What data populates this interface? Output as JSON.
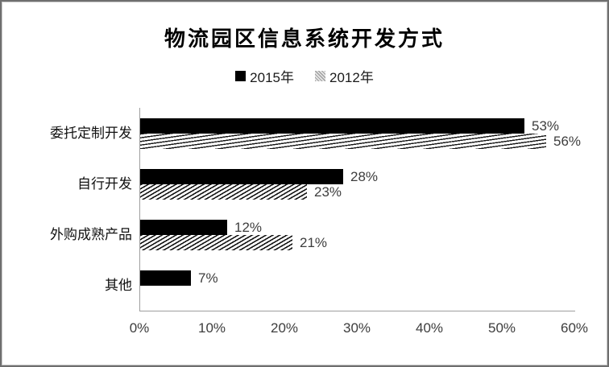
{
  "frame": {
    "background": "#ffffff",
    "border_color": "#6f6f6f"
  },
  "chart_data": {
    "type": "bar",
    "orientation": "horizontal",
    "title": "物流园区信息系统开发方式",
    "categories": [
      "委托定制开发",
      "自行开发",
      "外购成熟产品",
      "其他"
    ],
    "series": [
      {
        "name": "2015年",
        "style": "solid",
        "color": "#000000",
        "values": [
          53,
          28,
          12,
          7
        ],
        "labels": [
          "53%",
          "28%",
          "12%",
          "7%"
        ]
      },
      {
        "name": "2012年",
        "style": "hatched",
        "color": "#000000",
        "values": [
          56,
          23,
          21,
          null
        ],
        "labels": [
          "56%",
          "23%",
          "21%",
          null
        ]
      }
    ],
    "xlabel": "",
    "ylabel": "",
    "xlim": [
      0,
      60
    ],
    "x_ticks": [
      "0%",
      "10%",
      "20%",
      "30%",
      "40%",
      "50%",
      "60%"
    ],
    "grid": "off",
    "legend_position": "top-center",
    "value_label_suffix": "%"
  }
}
